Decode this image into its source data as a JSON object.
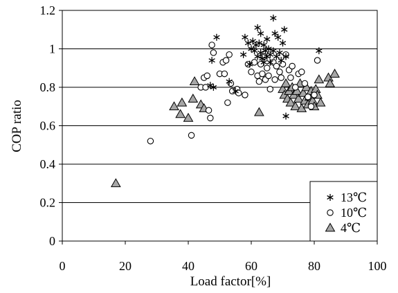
{
  "chart_data": {
    "type": "scatter",
    "xlabel": "Load factor[%]",
    "ylabel": "COP ratio",
    "xlim": [
      0,
      100
    ],
    "ylim": [
      0,
      1.2
    ],
    "x_ticks": [
      0,
      20,
      40,
      60,
      80,
      100
    ],
    "y_ticks": [
      0,
      0.2,
      0.4,
      0.6,
      0.8,
      1,
      1.2
    ],
    "x_tick_labels": [
      "0",
      "20",
      "40",
      "60",
      "80",
      "100"
    ],
    "y_tick_labels": [
      "0",
      "0.2",
      "0.4",
      "0.6",
      "0.8",
      "1",
      "1.2"
    ],
    "grid": "horizontal",
    "legend_position": "bottom-right",
    "series": [
      {
        "name": "13℃",
        "marker": "asterisk",
        "points": [
          [
            47,
            0.81
          ],
          [
            47.5,
            0.94
          ],
          [
            48,
            0.8
          ],
          [
            49,
            1.06
          ],
          [
            53,
            0.83
          ],
          [
            55,
            0.78
          ],
          [
            57.5,
            0.97
          ],
          [
            58,
            1.06
          ],
          [
            59,
            1.03
          ],
          [
            59.5,
            0.92
          ],
          [
            60,
            1.0
          ],
          [
            60.5,
            1.04
          ],
          [
            61,
            0.99
          ],
          [
            61.5,
            1.02
          ],
          [
            62,
            1.11
          ],
          [
            62,
            0.96
          ],
          [
            62.5,
            1.03
          ],
          [
            63,
            1.08
          ],
          [
            63,
            0.98
          ],
          [
            63.5,
            0.95
          ],
          [
            64,
            1.02
          ],
          [
            64,
            0.93
          ],
          [
            64.5,
            0.99
          ],
          [
            65,
            1.05
          ],
          [
            65,
            0.96
          ],
          [
            65.5,
            1.0
          ],
          [
            66,
            0.97
          ],
          [
            66,
            0.93
          ],
          [
            67,
            1.16
          ],
          [
            67,
            0.99
          ],
          [
            67.5,
            1.08
          ],
          [
            68,
            0.96
          ],
          [
            68.5,
            1.06
          ],
          [
            69,
            0.98
          ],
          [
            69.5,
            0.94
          ],
          [
            70,
            1.03
          ],
          [
            70.5,
            1.1
          ],
          [
            71,
            0.65
          ],
          [
            71,
            0.96
          ],
          [
            81.5,
            0.99
          ]
        ]
      },
      {
        "name": "10℃",
        "marker": "circle",
        "points": [
          [
            28,
            0.52
          ],
          [
            41,
            0.55
          ],
          [
            44,
            0.8
          ],
          [
            45,
            0.85
          ],
          [
            45.5,
            0.8
          ],
          [
            46,
            0.86
          ],
          [
            46.5,
            0.68
          ],
          [
            47,
            0.64
          ],
          [
            47.5,
            1.02
          ],
          [
            48,
            0.98
          ],
          [
            50,
            0.87
          ],
          [
            51,
            0.93
          ],
          [
            51.5,
            0.87
          ],
          [
            52,
            0.94
          ],
          [
            52.5,
            0.72
          ],
          [
            53,
            0.97
          ],
          [
            53.5,
            0.82
          ],
          [
            54,
            0.78
          ],
          [
            55.5,
            0.79
          ],
          [
            56,
            0.77
          ],
          [
            58,
            0.76
          ],
          [
            59,
            0.92
          ],
          [
            60,
            0.88
          ],
          [
            61,
            0.93
          ],
          [
            62,
            0.86
          ],
          [
            62.5,
            0.83
          ],
          [
            63,
            0.92
          ],
          [
            63.5,
            0.87
          ],
          [
            64,
            0.96
          ],
          [
            64.5,
            0.84
          ],
          [
            65,
            0.9
          ],
          [
            65.5,
            0.86
          ],
          [
            66,
            0.79
          ],
          [
            67,
            0.93
          ],
          [
            67.5,
            0.84
          ],
          [
            68,
            0.91
          ],
          [
            69,
            0.88
          ],
          [
            69.5,
            0.85
          ],
          [
            70,
            0.92
          ],
          [
            71,
            0.97
          ],
          [
            72,
            0.89
          ],
          [
            72.5,
            0.85
          ],
          [
            73,
            0.91
          ],
          [
            74,
            0.8
          ],
          [
            75,
            0.87
          ],
          [
            76,
            0.88
          ],
          [
            77,
            0.82
          ],
          [
            78,
            0.75
          ],
          [
            79,
            0.7
          ],
          [
            80,
            0.76
          ],
          [
            81,
            0.94
          ]
        ]
      },
      {
        "name": "4℃",
        "marker": "triangle",
        "points": [
          [
            17,
            0.3
          ],
          [
            35.5,
            0.7
          ],
          [
            37.5,
            0.66
          ],
          [
            38,
            0.72
          ],
          [
            40,
            0.64
          ],
          [
            41.5,
            0.74
          ],
          [
            42,
            0.83
          ],
          [
            44,
            0.71
          ],
          [
            45,
            0.69
          ],
          [
            62.5,
            0.67
          ],
          [
            70,
            0.79
          ],
          [
            70.5,
            0.76
          ],
          [
            71,
            0.82
          ],
          [
            71.5,
            0.74
          ],
          [
            72,
            0.78
          ],
          [
            72.5,
            0.72
          ],
          [
            73,
            0.8
          ],
          [
            73.5,
            0.76
          ],
          [
            74,
            0.7
          ],
          [
            74.5,
            0.78
          ],
          [
            75,
            0.74
          ],
          [
            75.5,
            0.82
          ],
          [
            76,
            0.69
          ],
          [
            76.5,
            0.77
          ],
          [
            77,
            0.73
          ],
          [
            77.5,
            0.8
          ],
          [
            78,
            0.71
          ],
          [
            78.5,
            0.75
          ],
          [
            79,
            0.78
          ],
          [
            79.5,
            0.73
          ],
          [
            80,
            0.7
          ],
          [
            80.5,
            0.79
          ],
          [
            81,
            0.76
          ],
          [
            81.5,
            0.84
          ],
          [
            82,
            0.72
          ],
          [
            84.5,
            0.85
          ],
          [
            85,
            0.82
          ],
          [
            86.5,
            0.87
          ]
        ]
      }
    ]
  }
}
